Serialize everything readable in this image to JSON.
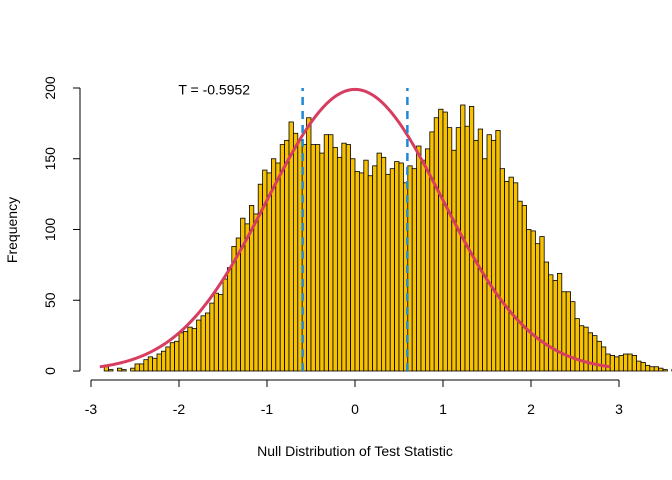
{
  "chart_data": {
    "type": "bar",
    "title": "",
    "xlabel": "Null Distribution of Test Statistic",
    "ylabel": "Frequency",
    "xlim": [
      -3,
      3
    ],
    "ylim": [
      0,
      200
    ],
    "x_ticks": [
      -3,
      -2,
      -1,
      0,
      1,
      2,
      3
    ],
    "y_ticks": [
      0,
      50,
      100,
      150,
      200
    ],
    "grid": false,
    "bin_width": 0.05,
    "bin_start": -2.85,
    "values": [
      3,
      1,
      0,
      2,
      1,
      0,
      2,
      5,
      5,
      8,
      10,
      9,
      12,
      14,
      17,
      20,
      21,
      27,
      28,
      31,
      30,
      36,
      39,
      41,
      48,
      55,
      54,
      65,
      73,
      88,
      94,
      108,
      104,
      117,
      111,
      132,
      142,
      140,
      150,
      147,
      160,
      163,
      176,
      168,
      163,
      160,
      179,
      160,
      160,
      154,
      167,
      167,
      158,
      151,
      161,
      160,
      150,
      141,
      140,
      149,
      138,
      145,
      154,
      151,
      139,
      143,
      148,
      147,
      133,
      145,
      143,
      159,
      149,
      157,
      169,
      179,
      185,
      183,
      172,
      156,
      172,
      188,
      173,
      187,
      163,
      171,
      150,
      167,
      163,
      170,
      143,
      134,
      137,
      133,
      120,
      117,
      100,
      99,
      90,
      95,
      77,
      68,
      64,
      69,
      56,
      56,
      49,
      37,
      32,
      31,
      27,
      25,
      21,
      17,
      12,
      11,
      10,
      11,
      12,
      12,
      11,
      7,
      6,
      4,
      3,
      3,
      2,
      1,
      0,
      1
    ],
    "bar_color": "#F5C100",
    "curve": {
      "type": "normal-density",
      "mean": 0,
      "peak": 199,
      "x_range": [
        -2.9,
        2.9
      ],
      "color": "#D73D60"
    },
    "reference_lines": [
      {
        "x": -0.5952,
        "color": "#1E88D6",
        "style": "dashed"
      },
      {
        "x": 0.5952,
        "color": "#1E88D6",
        "style": "dashed"
      }
    ],
    "annotation": {
      "text": "T = -0.5952",
      "x": -1.6,
      "y": 199,
      "color": "#1E88D6"
    }
  }
}
